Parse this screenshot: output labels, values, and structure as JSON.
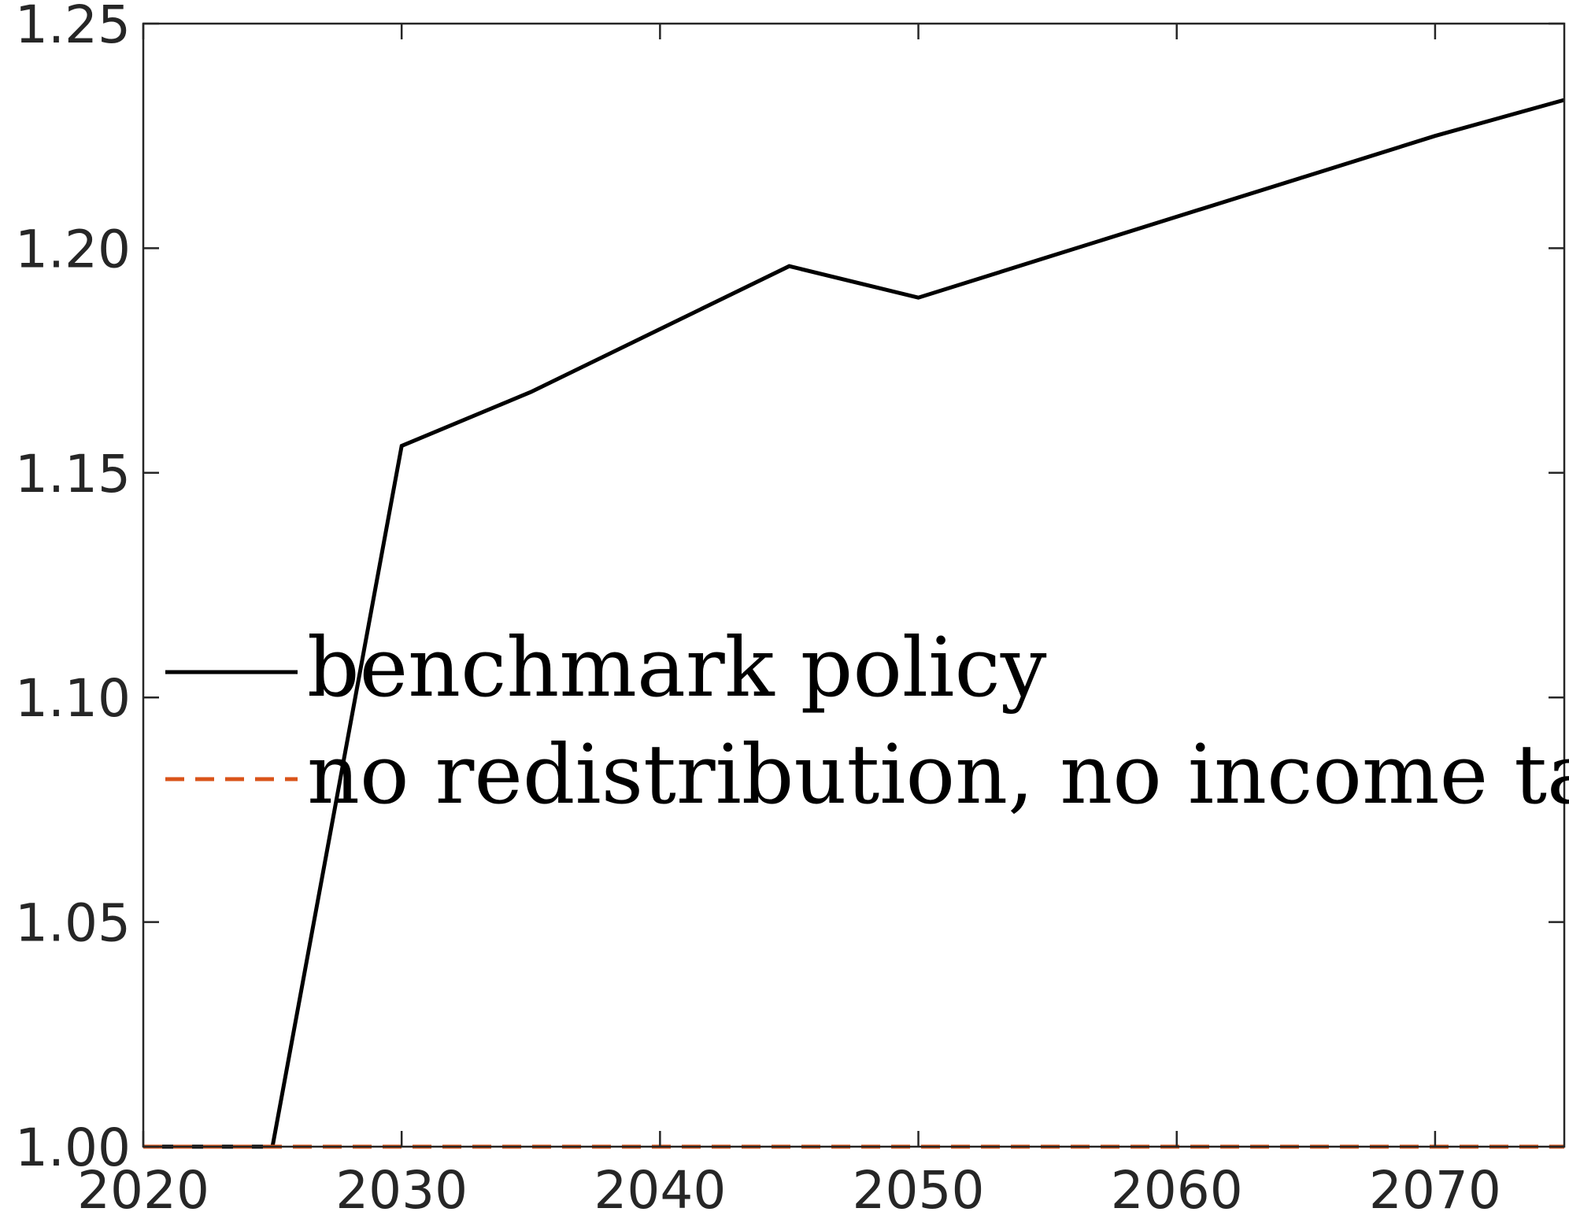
{
  "chart_data": {
    "type": "line",
    "title": "",
    "xlabel": "",
    "ylabel": "",
    "xlim": [
      2020,
      2075
    ],
    "ylim": [
      1.0,
      1.25
    ],
    "xticks": [
      2020,
      2030,
      2040,
      2050,
      2060,
      2070
    ],
    "xtick_labels": [
      "2020",
      "2030",
      "2040",
      "2050",
      "2060",
      "2070"
    ],
    "yticks": [
      1.0,
      1.05,
      1.1,
      1.15,
      1.2,
      1.25
    ],
    "ytick_labels": [
      "1.00",
      "1.05",
      "1.10",
      "1.15",
      "1.20",
      "1.25"
    ],
    "grid": false,
    "legend_position": "center-left",
    "series": [
      {
        "name": "benchmark policy",
        "color": "#000000",
        "style": "solid",
        "x": [
          2020,
          2025,
          2030,
          2035,
          2040,
          2045,
          2050,
          2055,
          2060,
          2065,
          2070,
          2075
        ],
        "y": [
          1.0,
          1.0,
          1.156,
          1.168,
          1.182,
          1.196,
          1.189,
          1.198,
          1.207,
          1.216,
          1.225,
          1.233
        ]
      },
      {
        "name": "no redistribution, no income tax",
        "color": "#D95319",
        "style": "dashed",
        "x": [
          2020,
          2075
        ],
        "y": [
          1.0,
          1.0
        ]
      }
    ]
  }
}
